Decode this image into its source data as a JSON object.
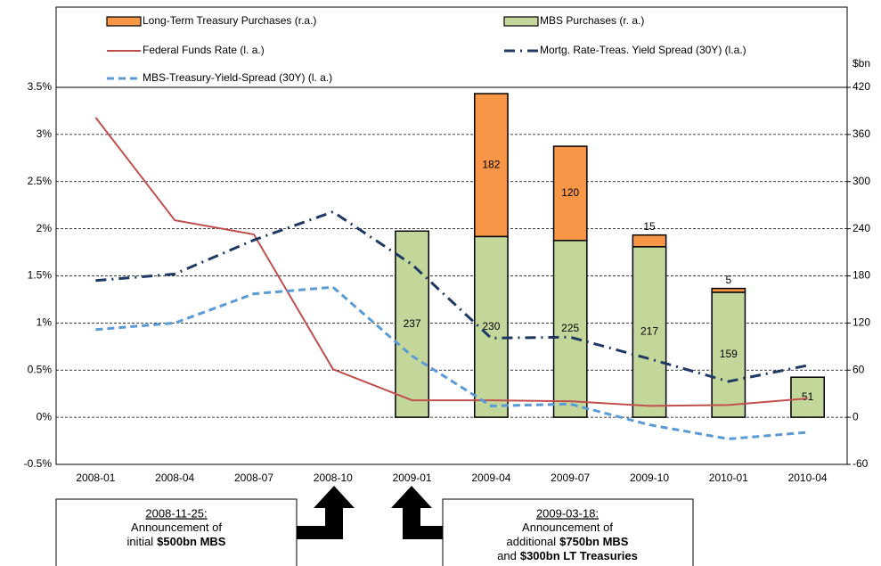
{
  "chart_data": {
    "type": "combo",
    "categories": [
      "2008-01",
      "2008-04",
      "2008-07",
      "2008-10",
      "2009-01",
      "2009-04",
      "2009-07",
      "2009-10",
      "2010-01",
      "2010-04"
    ],
    "ylim": [
      -0.5,
      3.5
    ],
    "yticks": [
      {
        "value": -0.5,
        "label": "-0.5%"
      },
      {
        "value": 0,
        "label": "0%"
      },
      {
        "value": 0.5,
        "label": "0.5%"
      },
      {
        "value": 1,
        "label": "1%"
      },
      {
        "value": 1.5,
        "label": "1.5%"
      },
      {
        "value": 2,
        "label": "2%"
      },
      {
        "value": 2.5,
        "label": "2.5%"
      },
      {
        "value": 3,
        "label": "3%"
      },
      {
        "value": 3.5,
        "label": "3.5%"
      }
    ],
    "y2lim": [
      -60,
      420
    ],
    "y2ticks": [
      -60,
      0,
      60,
      120,
      180,
      240,
      300,
      360,
      420
    ],
    "y2label": "$bn",
    "grid": true,
    "series": [
      {
        "name": "Long-Term Treasury Purchases (r.a.)",
        "type": "bar",
        "axis": "y2",
        "stack_on": 1,
        "color": "#f79646",
        "values": [
          null,
          null,
          null,
          null,
          null,
          182,
          120,
          15,
          5,
          null
        ]
      },
      {
        "name": "MBS Purchases (r. a.)",
        "type": "bar",
        "axis": "y2",
        "color": "#c4d79b",
        "values": [
          null,
          null,
          null,
          null,
          237,
          230,
          225,
          217,
          159,
          51
        ]
      },
      {
        "name": "Federal Funds Rate (l. a.)",
        "type": "line",
        "style": "solid",
        "color": "#c0504d",
        "values": [
          3.18,
          2.09,
          1.94,
          0.51,
          0.18,
          0.18,
          0.17,
          0.12,
          0.13,
          0.2
        ]
      },
      {
        "name": "Mortg. Rate-Treas. Yield Spread (30Y) (l.a.)",
        "type": "line",
        "style": "dashdot",
        "color": "#1f3864",
        "values": [
          1.45,
          1.52,
          1.88,
          2.18,
          1.62,
          0.84,
          0.85,
          0.62,
          0.38,
          0.55
        ]
      },
      {
        "name": "MBS-Treasury-Yield-Spread (30Y) (l. a.)",
        "type": "line",
        "style": "dashed",
        "color": "#5b9bd5",
        "values": [
          0.93,
          1.0,
          1.31,
          1.38,
          0.65,
          0.12,
          0.14,
          -0.08,
          -0.23,
          -0.16
        ]
      }
    ],
    "annotations": [
      {
        "date": "2008-11-25:",
        "lines": [
          [
            "Announcement of"
          ],
          [
            "initial",
            "$500bn MBS"
          ]
        ]
      },
      {
        "date": "2009-03-18:",
        "lines": [
          [
            "Announcement of"
          ],
          [
            "additional",
            "$750bn MBS"
          ],
          [
            "and",
            "$300bn LT Treasuries"
          ]
        ]
      }
    ]
  }
}
